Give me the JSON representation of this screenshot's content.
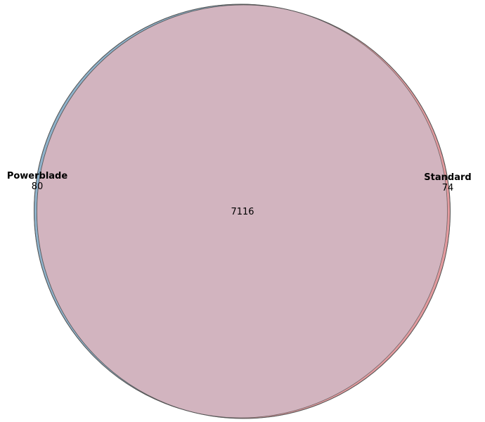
{
  "venn": {
    "sets": [
      {
        "name": "Powerblade",
        "only_count": "80",
        "color": "#8fb3cc"
      },
      {
        "name": "Standard",
        "only_count": "74",
        "color": "#e39a9e"
      }
    ],
    "intersection": {
      "count": "7116",
      "color": "#d2b4bf"
    },
    "outline_color": "#555555"
  }
}
